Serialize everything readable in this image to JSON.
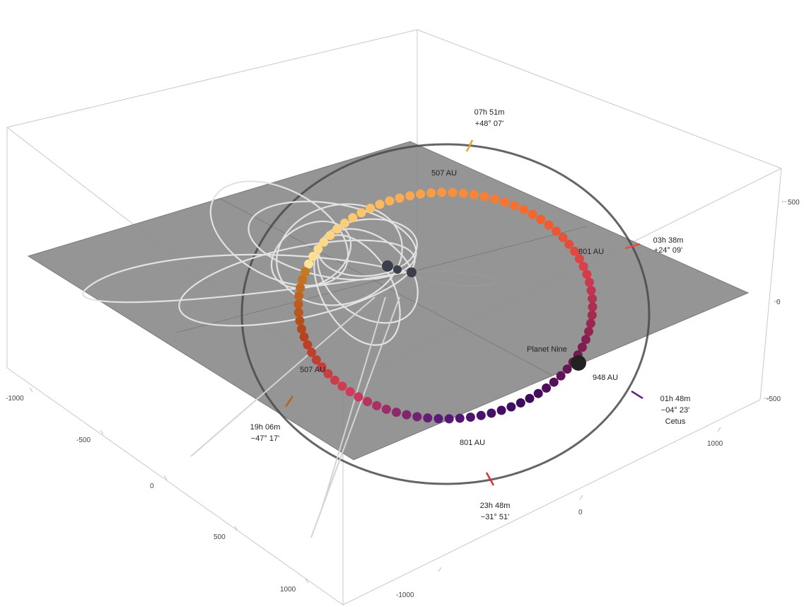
{
  "figure": {
    "caption_blurred": ""
  },
  "colors": {
    "background": "#ffffff",
    "plane": "#8c8c8c",
    "ring": "#4a4a4a",
    "orbits": "#d9d9d9",
    "planet": "#222222",
    "gradient": [
      "#fde39a",
      "#fcc267",
      "#f98e3a",
      "#f4622a",
      "#d23a4e",
      "#7d1d52",
      "#3a0a5c",
      "#5b1a78",
      "#d13b5a",
      "#b5421c",
      "#c98021"
    ]
  },
  "axes": {
    "right_ticks": [
      "500",
      "0",
      "-500"
    ],
    "left_ticks": [
      "-1000",
      "-500",
      "0",
      "500",
      "1000"
    ],
    "bottom_ticks": [
      "1000",
      "0",
      "-1000"
    ]
  },
  "ring_labels": {
    "top": {
      "line1": "07h 51m",
      "line2": "+48° 07'"
    },
    "right": {
      "line1": "03h 38m",
      "line2": "+24° 09'"
    },
    "lower_right": {
      "line1": "01h 48m",
      "line2": "−04° 23'",
      "line3": "Cetus"
    },
    "bottom": {
      "line1": "23h 48m",
      "line2": "−31° 51'"
    },
    "left": {
      "line1": "19h 06m",
      "line2": "−47° 17'"
    }
  },
  "orbit_labels": {
    "aphelion_top": "507 AU",
    "right": "801 AU",
    "perihelion": "948 AU",
    "bottom": "801 AU",
    "left": "507 AU",
    "planet": "Planet Nine"
  }
}
